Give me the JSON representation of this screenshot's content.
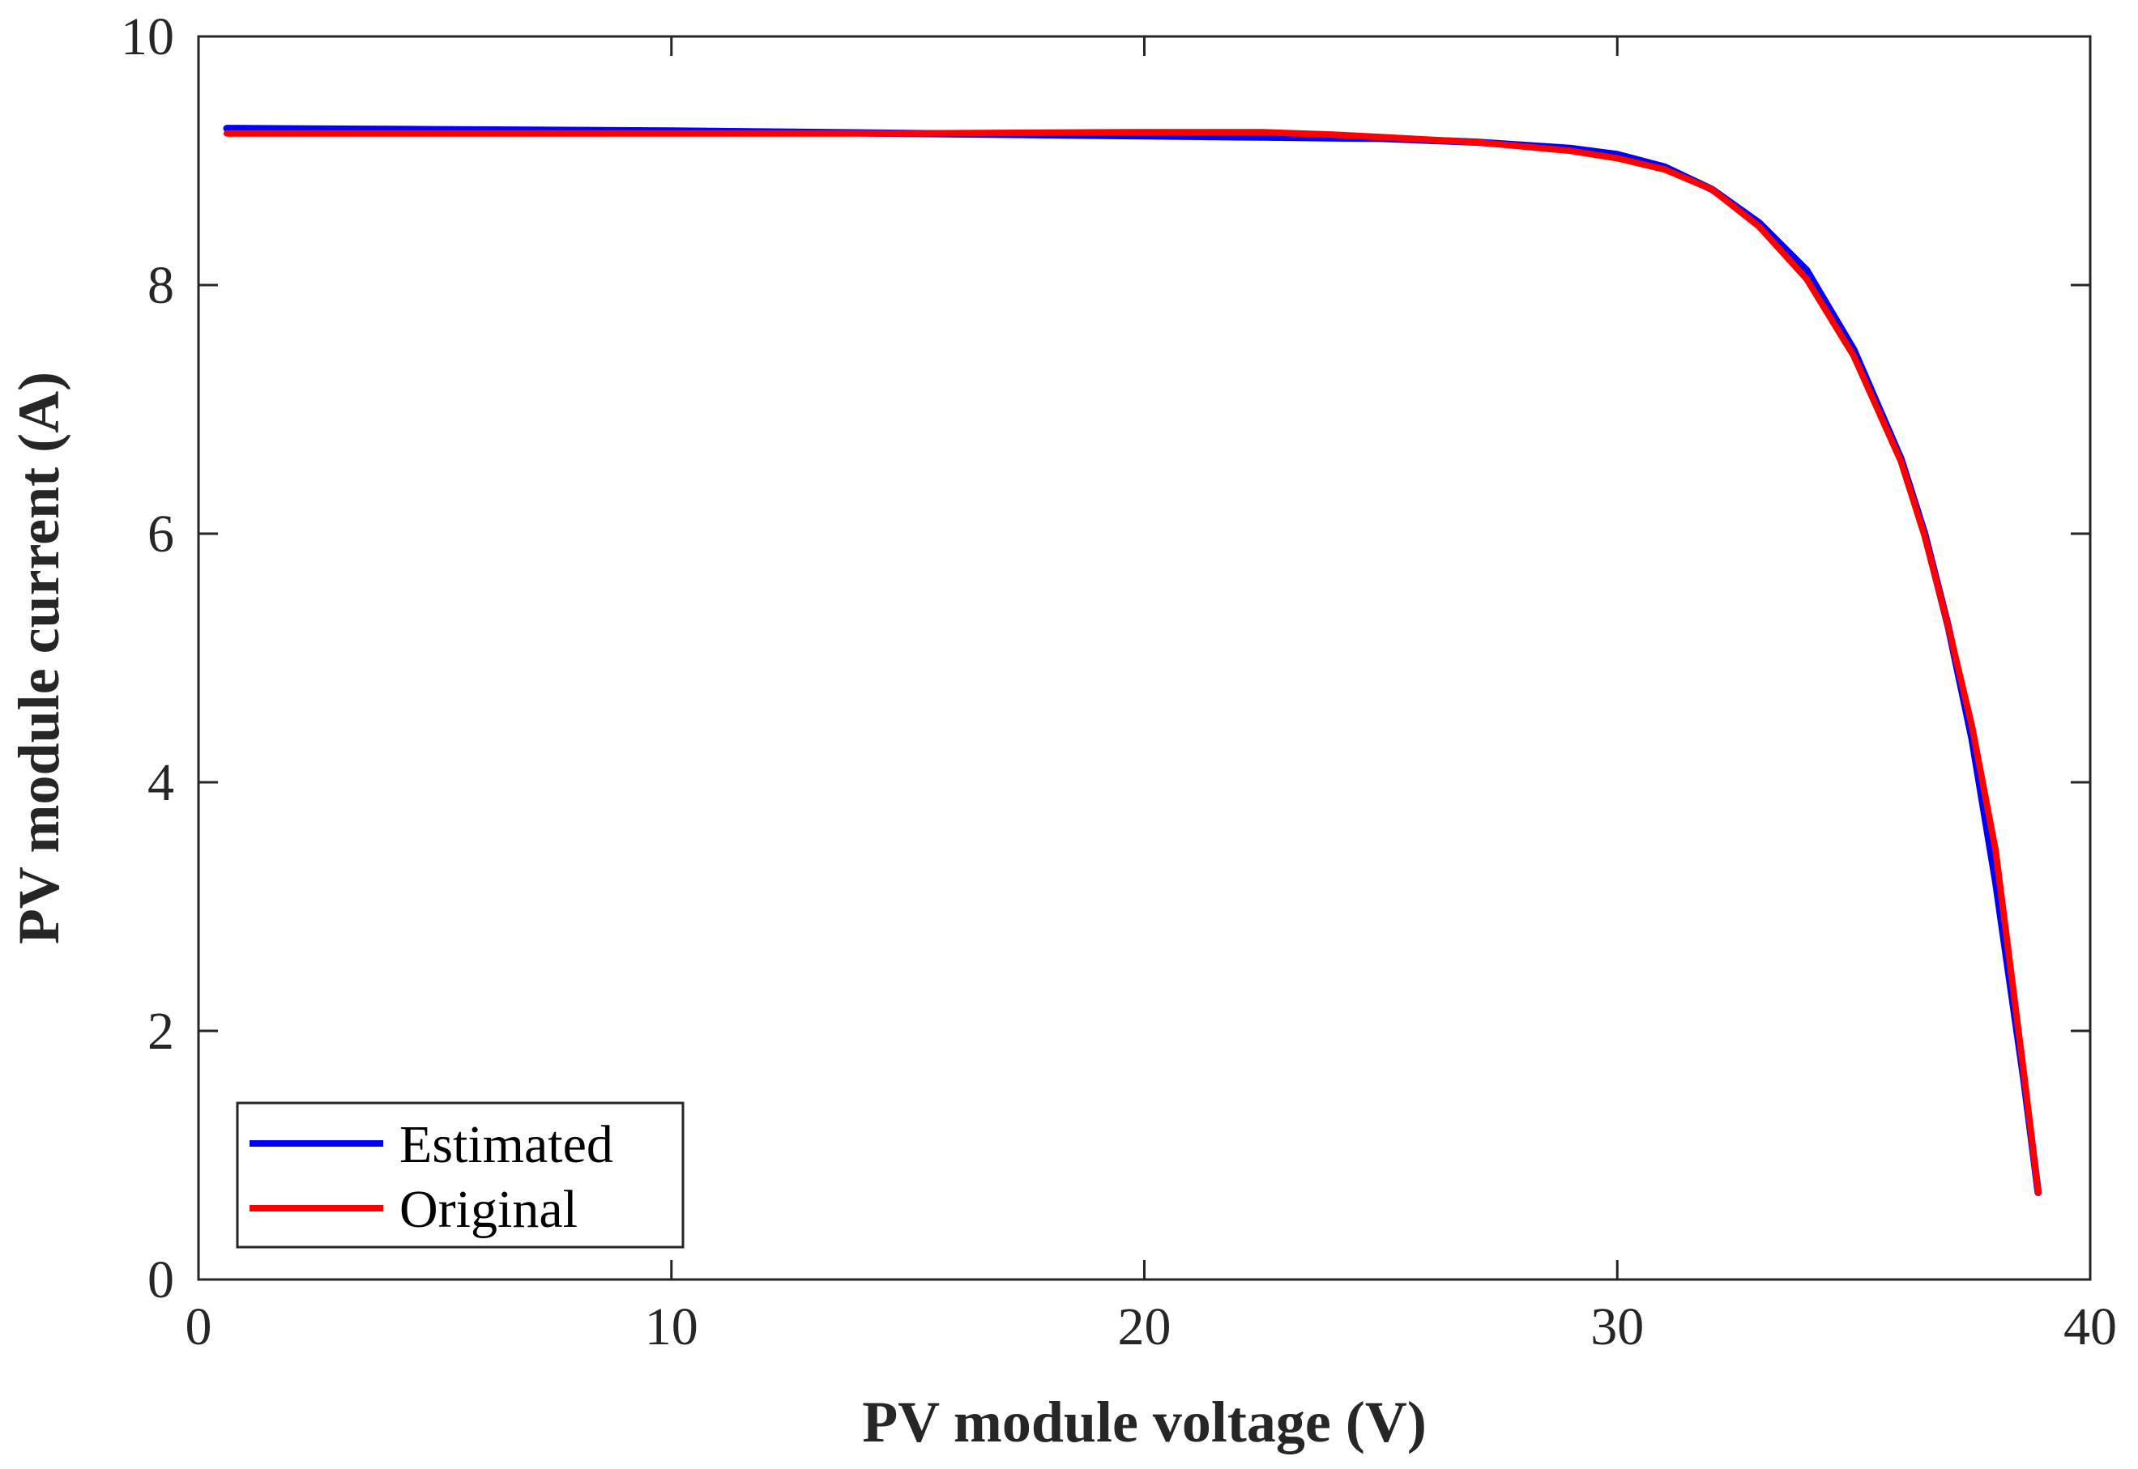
{
  "chart_data": {
    "type": "line",
    "title": "",
    "xlabel": "PV module voltage (V)",
    "ylabel": "PV module current (A)",
    "xlim": [
      0,
      40
    ],
    "ylim": [
      0,
      10
    ],
    "xticks": [
      {
        "value": 0,
        "label": "0"
      },
      {
        "value": 10,
        "label": "10"
      },
      {
        "value": 20,
        "label": "20"
      },
      {
        "value": 30,
        "label": "30"
      },
      {
        "value": 40,
        "label": "40"
      }
    ],
    "yticks": [
      {
        "value": 0,
        "label": "0"
      },
      {
        "value": 2,
        "label": "2"
      },
      {
        "value": 4,
        "label": "4"
      },
      {
        "value": 6,
        "label": "6"
      },
      {
        "value": 8,
        "label": "8"
      },
      {
        "value": 10,
        "label": "10"
      }
    ],
    "grid": false,
    "legend_position": "bottom-left",
    "series": [
      {
        "name": "Estimated",
        "color": "#0000ff",
        "x": [
          0.6,
          5,
          10,
          15,
          20,
          22.5,
          25,
          27,
          29,
          30,
          31,
          32,
          33,
          34,
          35,
          36,
          36.5,
          37,
          37.5,
          38,
          38.3,
          38.6,
          38.9
        ],
        "y": [
          9.26,
          9.25,
          9.24,
          9.22,
          9.2,
          9.19,
          9.18,
          9.15,
          9.1,
          9.05,
          8.95,
          8.77,
          8.5,
          8.12,
          7.48,
          6.6,
          6.0,
          5.25,
          4.35,
          3.2,
          2.4,
          1.6,
          0.7
        ]
      },
      {
        "name": "Original",
        "color": "#ff0000",
        "x": [
          0.6,
          5,
          10,
          15,
          20,
          22.5,
          24,
          25,
          27,
          29,
          30,
          31,
          32,
          33,
          34,
          35,
          36,
          36.5,
          37,
          37.5,
          38,
          38.3,
          38.6,
          38.9
        ],
        "y": [
          9.22,
          9.22,
          9.22,
          9.22,
          9.23,
          9.23,
          9.21,
          9.19,
          9.15,
          9.08,
          9.02,
          8.93,
          8.77,
          8.47,
          8.05,
          7.43,
          6.58,
          5.98,
          5.25,
          4.45,
          3.45,
          2.55,
          1.65,
          0.7
        ]
      }
    ]
  }
}
